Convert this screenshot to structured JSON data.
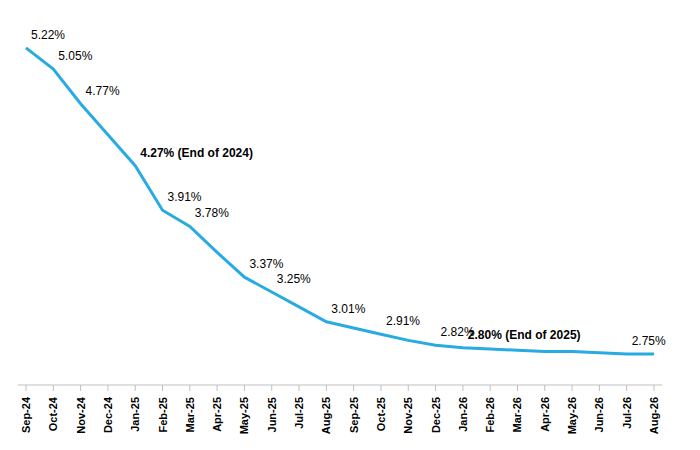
{
  "chart_data": {
    "type": "line",
    "categories": [
      "Sep-24",
      "Oct-24",
      "Nov-24",
      "Dec-24",
      "Jan-25",
      "Feb-25",
      "Mar-25",
      "Apr-25",
      "May-25",
      "Jun-25",
      "Jul-25",
      "Aug-25",
      "Sep-25",
      "Oct-25",
      "Nov-25",
      "Dec-25",
      "Jan-26",
      "Feb-26",
      "Mar-26",
      "Apr-26",
      "May-26",
      "Jun-26",
      "Jul-26",
      "Aug-26"
    ],
    "values": [
      5.22,
      5.05,
      4.77,
      4.52,
      4.27,
      3.91,
      3.78,
      3.57,
      3.37,
      3.25,
      3.13,
      3.01,
      2.96,
      2.91,
      2.86,
      2.82,
      2.8,
      2.79,
      2.78,
      2.77,
      2.77,
      2.76,
      2.75,
      2.75
    ],
    "value_labels": [
      "5.22%",
      "5.05%",
      "4.77%",
      null,
      "4.27% (End of 2024)",
      "3.91%",
      "3.78%",
      null,
      "3.37%",
      "3.25%",
      null,
      "3.01%",
      null,
      "2.91%",
      null,
      "2.82%",
      "2.80% (End of 2025)",
      null,
      null,
      null,
      null,
      null,
      "2.75%",
      null
    ],
    "color": "#29abe2",
    "ylim": [
      2.5,
      5.3
    ],
    "grid": false,
    "tick_labels": "x",
    "data_labels": true
  }
}
